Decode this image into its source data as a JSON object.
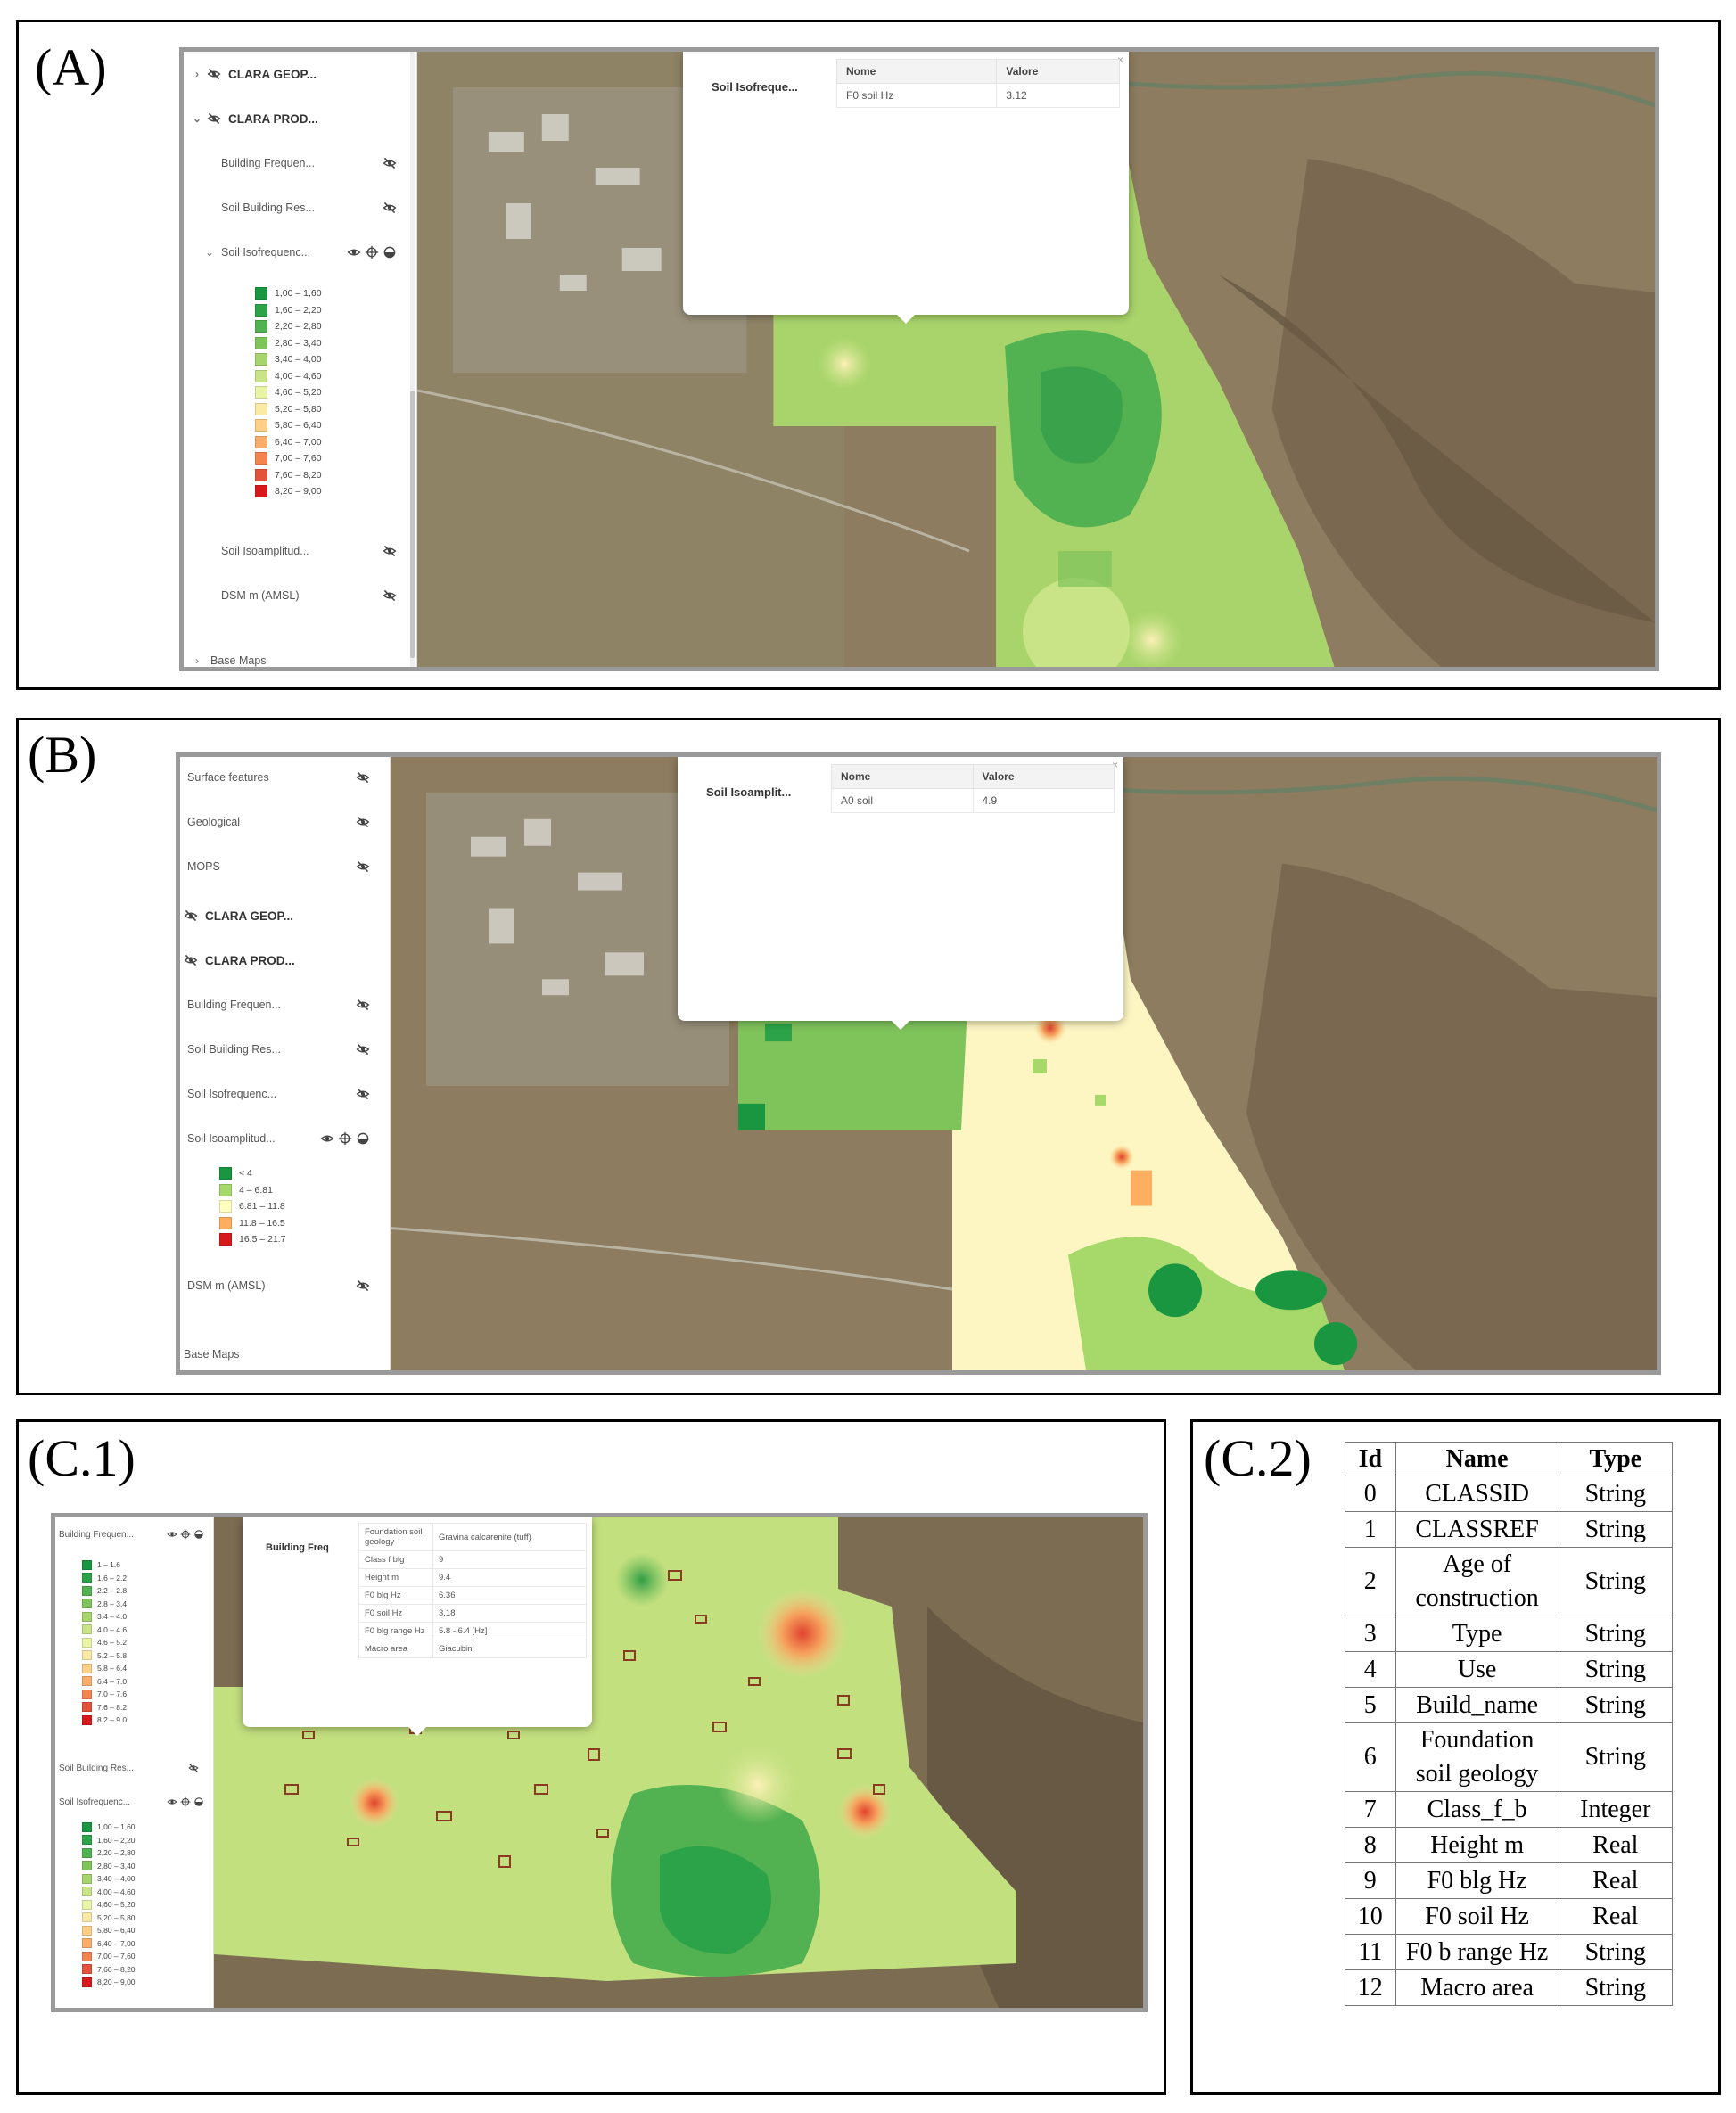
{
  "panels": {
    "a_label": "(A)",
    "b_label": "(B)",
    "c1_label": "(C.1)",
    "c2_label": "(C.2)"
  },
  "panel_a": {
    "sidebar": {
      "group1": "CLARA GEOP...",
      "group2": "CLARA PROD...",
      "layer_building_freq": "Building Frequen...",
      "layer_soil_building_res": "Soil Building Res...",
      "layer_soil_isofreq": "Soil Isofrequenc...",
      "layer_soil_isoampl": "Soil Isoamplitud...",
      "layer_dsm": "DSM m (AMSL)",
      "base_maps": "Base Maps",
      "legend": [
        {
          "label": "1,00 – 1,60",
          "color": "#1a9641"
        },
        {
          "label": "1,60 – 2,20",
          "color": "#2ca348"
        },
        {
          "label": "2,20 – 2,80",
          "color": "#52b151"
        },
        {
          "label": "2,80 – 3,40",
          "color": "#7fc35b"
        },
        {
          "label": "3,40 – 4,00",
          "color": "#a6d46d"
        },
        {
          "label": "4,00 – 4,60",
          "color": "#c9e487"
        },
        {
          "label": "4,60 – 5,20",
          "color": "#e9f4a6"
        },
        {
          "label": "5,20 – 5,80",
          "color": "#fbe9a6"
        },
        {
          "label": "5,80 – 6,40",
          "color": "#fdcf87"
        },
        {
          "label": "6,40 – 7,00",
          "color": "#fbae6b"
        },
        {
          "label": "7,00 – 7,60",
          "color": "#f4844f"
        },
        {
          "label": "7,60 – 8,20",
          "color": "#e3523a"
        },
        {
          "label": "8,20 – 9,00",
          "color": "#d7191c"
        }
      ]
    },
    "popup": {
      "title": "Soil Isofreque...",
      "col_name": "Nome",
      "col_value": "Valore",
      "row_name": "F0 soil Hz",
      "row_value": "3.12",
      "close": "×"
    }
  },
  "panel_b": {
    "sidebar": {
      "layer_surface": "Surface features",
      "layer_geological": "Geological",
      "layer_mops": "MOPS",
      "group1": "CLARA GEOP...",
      "group2": "CLARA PROD...",
      "layer_building_freq": "Building Frequen...",
      "layer_soil_building_res": "Soil Building Res...",
      "layer_soil_isofreq": "Soil Isofrequenc...",
      "layer_soil_isoampl": "Soil Isoamplitud...",
      "layer_dsm": "DSM m (AMSL)",
      "base_maps": "Base Maps",
      "legend": [
        {
          "label": "< 4",
          "color": "#1a9641"
        },
        {
          "label": "4 – 6.81",
          "color": "#a6d96a"
        },
        {
          "label": "6.81 – 11.8",
          "color": "#ffffbf"
        },
        {
          "label": "11.8 – 16.5",
          "color": "#fdae61"
        },
        {
          "label": "16.5 – 21.7",
          "color": "#d7191c"
        }
      ]
    },
    "popup": {
      "title": "Soil Isoamplit...",
      "col_name": "Nome",
      "col_value": "Valore",
      "row_name": "A0 soil",
      "row_value": "4.9",
      "close": "×"
    }
  },
  "panel_c1": {
    "sidebar": {
      "layer_building_freq": "Building Frequen...",
      "layer_soil_building_res": "Soil Building Res...",
      "layer_soil_isofreq": "Soil Isofrequenc...",
      "legend1": [
        {
          "label": "1 – 1.6",
          "color": "#1a9641"
        },
        {
          "label": "1.6 – 2.2",
          "color": "#2ca348"
        },
        {
          "label": "2.2 – 2.8",
          "color": "#52b151"
        },
        {
          "label": "2.8 – 3.4",
          "color": "#7fc35b"
        },
        {
          "label": "3.4 – 4.0",
          "color": "#a6d46d"
        },
        {
          "label": "4.0 – 4.6",
          "color": "#c9e487"
        },
        {
          "label": "4.6 – 5.2",
          "color": "#e9f4a6"
        },
        {
          "label": "5.2 – 5.8",
          "color": "#fbe9a6"
        },
        {
          "label": "5.8 – 6.4",
          "color": "#fdcf87"
        },
        {
          "label": "6.4 – 7.0",
          "color": "#fbae6b"
        },
        {
          "label": "7.0 – 7.6",
          "color": "#f4844f"
        },
        {
          "label": "7.6 – 8.2",
          "color": "#e3523a"
        },
        {
          "label": "8.2 – 9.0",
          "color": "#d7191c"
        }
      ],
      "legend2": [
        {
          "label": "1,00 – 1,60",
          "color": "#1a9641"
        },
        {
          "label": "1,60 – 2,20",
          "color": "#2ca348"
        },
        {
          "label": "2,20 – 2,80",
          "color": "#52b151"
        },
        {
          "label": "2,80 – 3,40",
          "color": "#7fc35b"
        },
        {
          "label": "3,40 – 4,00",
          "color": "#a6d46d"
        },
        {
          "label": "4,00 – 4,60",
          "color": "#c9e487"
        },
        {
          "label": "4,60 – 5,20",
          "color": "#e9f4a6"
        },
        {
          "label": "5,20 – 5,80",
          "color": "#fbe9a6"
        },
        {
          "label": "5,80 – 6,40",
          "color": "#fdcf87"
        },
        {
          "label": "6,40 – 7,00",
          "color": "#fbae6b"
        },
        {
          "label": "7,00 – 7,60",
          "color": "#f4844f"
        },
        {
          "label": "7,60 – 8,20",
          "color": "#e3523a"
        },
        {
          "label": "8,20 – 9,00",
          "color": "#d7191c"
        }
      ]
    },
    "popup": {
      "title": "Building Freq",
      "rows": [
        {
          "name": "Foundation soil geology",
          "value": "Gravina calcarenite (tuff)"
        },
        {
          "name": "Class f blg",
          "value": "9"
        },
        {
          "name": "Height m",
          "value": "9.4"
        },
        {
          "name": "F0 blg Hz",
          "value": "6.36"
        },
        {
          "name": "F0 soil Hz",
          "value": "3.18"
        },
        {
          "name": "F0 blg range Hz",
          "value": "5.8 - 6.4 [Hz]"
        },
        {
          "name": "Macro area",
          "value": "Giacubini"
        }
      ]
    }
  },
  "panel_c2": {
    "headers": {
      "id": "Id",
      "name": "Name",
      "type": "Type"
    },
    "rows": [
      {
        "id": "0",
        "name": "CLASSID",
        "type": "String"
      },
      {
        "id": "1",
        "name": "CLASSREF",
        "type": "String"
      },
      {
        "id": "2",
        "name": "Age of construction",
        "type": "String"
      },
      {
        "id": "3",
        "name": "Type",
        "type": "String"
      },
      {
        "id": "4",
        "name": "Use",
        "type": "String"
      },
      {
        "id": "5",
        "name": "Build_name",
        "type": "String"
      },
      {
        "id": "6",
        "name": "Foundation soil geology",
        "type": "String"
      },
      {
        "id": "7",
        "name": "Class_f_b",
        "type": "Integer"
      },
      {
        "id": "8",
        "name": "Height m",
        "type": "Real"
      },
      {
        "id": "9",
        "name": "F0 blg Hz",
        "type": "Real"
      },
      {
        "id": "10",
        "name": "F0 soil Hz",
        "type": "Real"
      },
      {
        "id": "11",
        "name": "F0 b range Hz",
        "type": "String"
      },
      {
        "id": "12",
        "name": "Macro area",
        "type": "String"
      }
    ]
  },
  "icons": {
    "eye_off": "eye-off-icon",
    "eye": "eye-icon",
    "crosshair": "crosshair-icon",
    "opacity": "opacity-icon",
    "chevron_right": "chevron-right-icon",
    "chevron_down": "chevron-down-icon"
  }
}
